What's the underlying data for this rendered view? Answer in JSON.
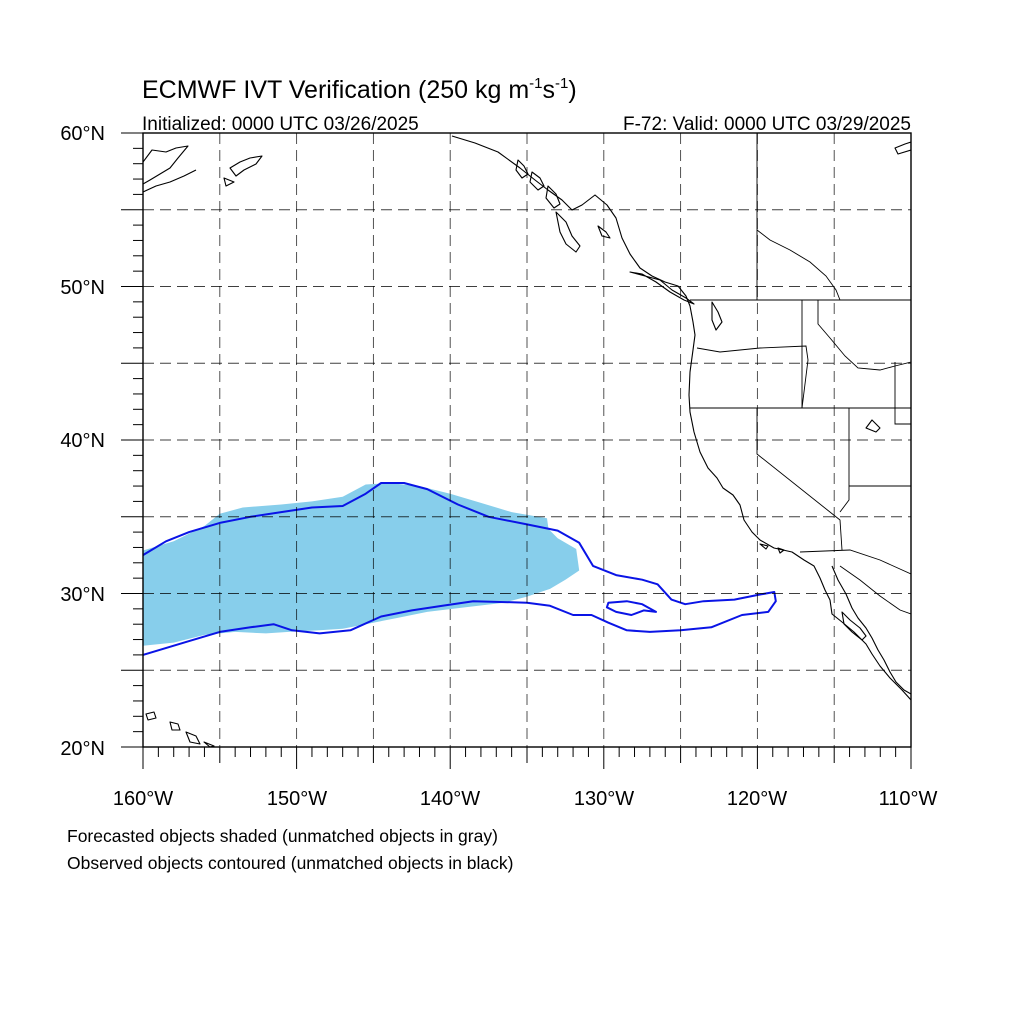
{
  "title": {
    "main": "ECMWF IVT Verification (250 kg m",
    "sup1": "-1",
    "mid": "s",
    "sup2": "-1",
    "close": ")"
  },
  "initialized": "Initialized: 0000 UTC 03/26/2025",
  "valid": "F-72: Valid: 0000 UTC 03/29/2025",
  "map": {
    "lon_range": [
      -160,
      -110
    ],
    "lat_range": [
      20,
      60
    ],
    "grid_spacing_deg": 5,
    "grid": "dashed",
    "lat_labels": [
      "60°N",
      "50°N",
      "40°N",
      "30°N",
      "20°N"
    ],
    "lon_labels": [
      "160°W",
      "150°W",
      "140°W",
      "130°W",
      "120°W",
      "110°W"
    ]
  },
  "colors": {
    "forecast_fill": "#87ceeb",
    "observed_contour": "#0a14e6",
    "coastline": "#000000"
  },
  "forecast_object": {
    "color_name": "sky blue",
    "lonlat": [
      [
        -160,
        32.8
      ],
      [
        -158,
        33.4
      ],
      [
        -156,
        34.4
      ],
      [
        -155,
        35.2
      ],
      [
        -153.5,
        35.6
      ],
      [
        -151,
        35.8
      ],
      [
        -149,
        36
      ],
      [
        -147,
        36.3
      ],
      [
        -145.5,
        37.1
      ],
      [
        -144,
        37.2
      ],
      [
        -142,
        37
      ],
      [
        -140,
        36.5
      ],
      [
        -138,
        35.9
      ],
      [
        -136,
        35.3
      ],
      [
        -133.7,
        34.9
      ],
      [
        -133.6,
        34.2
      ],
      [
        -133,
        33.6
      ],
      [
        -131.8,
        32.9
      ],
      [
        -131.6,
        31.5
      ],
      [
        -132.5,
        30.9
      ],
      [
        -133.5,
        30.3
      ],
      [
        -135,
        29.8
      ],
      [
        -136.5,
        29.4
      ],
      [
        -139,
        29.1
      ],
      [
        -141.5,
        28.8
      ],
      [
        -143.5,
        28.4
      ],
      [
        -145.5,
        28
      ],
      [
        -147,
        27.7
      ],
      [
        -148.5,
        27.6
      ],
      [
        -150.5,
        27.5
      ],
      [
        -152,
        27.4
      ],
      [
        -154,
        27.5
      ],
      [
        -156,
        27.3
      ],
      [
        -158,
        26.8
      ],
      [
        -160,
        26.6
      ]
    ]
  },
  "observed_object": {
    "color_name": "blue",
    "lonlat": [
      [
        -160,
        32.5
      ],
      [
        -158.5,
        33.4
      ],
      [
        -157,
        34
      ],
      [
        -155,
        34.6
      ],
      [
        -153,
        35
      ],
      [
        -151,
        35.3
      ],
      [
        -149,
        35.6
      ],
      [
        -147,
        35.7
      ],
      [
        -145.5,
        36.5
      ],
      [
        -144.5,
        37.2
      ],
      [
        -143,
        37.2
      ],
      [
        -141.5,
        36.8
      ],
      [
        -139.5,
        35.8
      ],
      [
        -137.5,
        35
      ],
      [
        -135,
        34.5
      ],
      [
        -133,
        34.1
      ],
      [
        -131.6,
        33.3
      ],
      [
        -130.7,
        31.8
      ],
      [
        -129.2,
        31.2
      ],
      [
        -127.5,
        30.9
      ],
      [
        -126.5,
        30.6
      ],
      [
        -125.6,
        29.6
      ],
      [
        -124.7,
        29.3
      ],
      [
        -123.5,
        29.5
      ],
      [
        -121.5,
        29.6
      ],
      [
        -120,
        29.9
      ],
      [
        -118.9,
        30.1
      ],
      [
        -118.8,
        29.5
      ],
      [
        -119.3,
        28.8
      ],
      [
        -121,
        28.6
      ],
      [
        -123,
        27.8
      ],
      [
        -125,
        27.6
      ],
      [
        -127,
        27.5
      ],
      [
        -128.5,
        27.6
      ],
      [
        -129.7,
        28.1
      ],
      [
        -130.8,
        28.6
      ],
      [
        -132,
        28.6
      ],
      [
        -133.5,
        29.2
      ],
      [
        -135,
        29.4
      ],
      [
        -138.5,
        29.5
      ],
      [
        -140.5,
        29.2
      ],
      [
        -142.5,
        28.9
      ],
      [
        -144.5,
        28.5
      ],
      [
        -146.5,
        27.6
      ],
      [
        -148.5,
        27.4
      ],
      [
        -150.3,
        27.6
      ],
      [
        -151.5,
        28
      ],
      [
        -153,
        27.8
      ],
      [
        -155,
        27.5
      ],
      [
        -157,
        26.9
      ],
      [
        -160,
        26
      ]
    ],
    "inner_loop": [
      [
        -129.7,
        29.4
      ],
      [
        -128.5,
        29.5
      ],
      [
        -127.5,
        29.3
      ],
      [
        -126.6,
        28.8
      ],
      [
        -127.4,
        28.9
      ],
      [
        -128.2,
        28.6
      ],
      [
        -129.2,
        28.8
      ],
      [
        -129.8,
        29.1
      ]
    ]
  },
  "notes": {
    "line1": "Forecasted objects shaded (unmatched objects in gray)",
    "line2": "Observed objects contoured (unmatched objects in black)"
  }
}
